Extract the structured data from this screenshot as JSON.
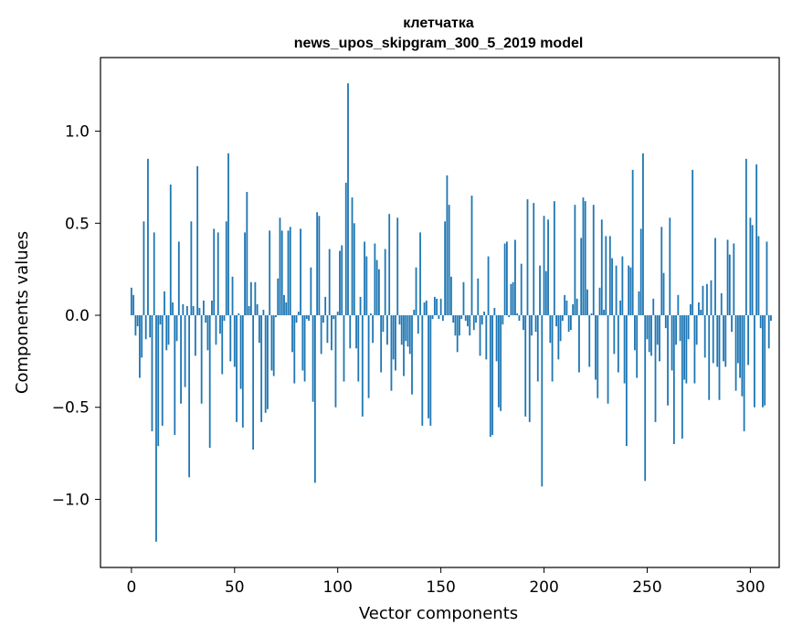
{
  "chart_data": {
    "type": "bar",
    "title": "клетчатка",
    "subtitle": "news_upos_skipgram_300_5_2019 model",
    "xlabel": "Vector components",
    "ylabel": "Components values",
    "xlim": [
      -15,
      314
    ],
    "ylim": [
      -1.37,
      1.4
    ],
    "x_ticks": [
      0,
      50,
      100,
      150,
      200,
      250,
      300
    ],
    "x_tick_labels": [
      "0",
      "50",
      "100",
      "150",
      "200",
      "250",
      "300"
    ],
    "y_ticks": [
      1.0,
      0.5,
      0.0,
      -0.5,
      -1.0
    ],
    "y_tick_labels": [
      "1.0",
      "0.5",
      "0.0",
      "−0.5",
      "−1.0"
    ],
    "grid": false,
    "legend": "none",
    "bar_color": "#1f77b4",
    "x_start": 0,
    "values": [
      0.15,
      0.11,
      -0.11,
      -0.06,
      -0.34,
      -0.23,
      0.51,
      -0.13,
      0.85,
      -0.12,
      -0.63,
      0.45,
      -1.23,
      -0.71,
      -0.05,
      -0.6,
      0.13,
      -0.19,
      -0.16,
      0.71,
      0.07,
      -0.65,
      -0.14,
      0.4,
      -0.48,
      0.06,
      -0.39,
      0.05,
      -0.88,
      0.51,
      0.05,
      -0.22,
      0.81,
      0.04,
      -0.48,
      0.08,
      -0.04,
      -0.19,
      -0.72,
      0.08,
      0.47,
      -0.16,
      0.45,
      -0.1,
      -0.32,
      -0.03,
      0.51,
      0.88,
      -0.25,
      0.21,
      -0.28,
      -0.58,
      0.01,
      -0.4,
      -0.61,
      0.45,
      0.67,
      0.05,
      0.18,
      -0.73,
      0.18,
      0.06,
      -0.15,
      -0.58,
      0.03,
      -0.53,
      -0.51,
      0.46,
      -0.3,
      -0.33,
      -0.01,
      0.2,
      0.53,
      0.46,
      0.11,
      0.07,
      0.46,
      0.48,
      -0.2,
      -0.37,
      -0.04,
      0.02,
      0.47,
      -0.3,
      -0.36,
      -0.02,
      -0.03,
      0.26,
      -0.47,
      -0.91,
      0.56,
      0.54,
      -0.21,
      -0.04,
      0.1,
      -0.15,
      0.36,
      -0.19,
      -0.02,
      -0.5,
      0.02,
      0.35,
      0.38,
      -0.36,
      0.72,
      1.26,
      -0.18,
      0.64,
      0.5,
      -0.18,
      -0.36,
      0.1,
      -0.55,
      0.4,
      0.32,
      -0.45,
      0.01,
      -0.15,
      0.39,
      0.3,
      0.25,
      -0.31,
      -0.09,
      0.36,
      -0.16,
      0.55,
      -0.41,
      -0.24,
      -0.3,
      0.53,
      -0.05,
      -0.16,
      -0.33,
      -0.14,
      -0.17,
      -0.21,
      -0.43,
      0.03,
      0.26,
      -0.1,
      0.45,
      -0.6,
      0.07,
      0.08,
      -0.56,
      -0.6,
      -0.02,
      0.1,
      0.09,
      -0.02,
      0.09,
      -0.03,
      0.51,
      0.76,
      0.6,
      0.21,
      -0.04,
      -0.11,
      -0.2,
      -0.11,
      -0.02,
      0.18,
      -0.03,
      -0.06,
      -0.11,
      0.65,
      -0.08,
      -0.04,
      0.2,
      -0.22,
      -0.05,
      0.02,
      -0.24,
      0.32,
      -0.66,
      -0.65,
      0.04,
      -0.25,
      -0.5,
      -0.52,
      -0.05,
      0.39,
      0.4,
      -0.01,
      0.17,
      0.18,
      0.41,
      0.01,
      -0.03,
      0.28,
      -0.08,
      -0.55,
      0.63,
      -0.58,
      -0.11,
      0.61,
      -0.09,
      -0.36,
      0.27,
      -0.93,
      0.54,
      0.24,
      0.52,
      -0.15,
      -0.36,
      0.62,
      -0.06,
      -0.24,
      -0.14,
      -0.03,
      0.11,
      0.08,
      -0.09,
      -0.08,
      0.06,
      0.6,
      0.09,
      -0.31,
      0.42,
      0.64,
      0.62,
      0.14,
      -0.28,
      0.01,
      0.6,
      -0.35,
      -0.45,
      0.15,
      0.52,
      0.03,
      0.43,
      -0.48,
      0.43,
      0.31,
      -0.21,
      0.27,
      -0.31,
      0.08,
      0.32,
      -0.37,
      -0.71,
      0.27,
      0.26,
      0.79,
      -0.19,
      -0.34,
      0.13,
      0.47,
      0.88,
      -0.9,
      -0.13,
      -0.2,
      -0.22,
      0.09,
      -0.58,
      -0.16,
      -0.25,
      0.48,
      0.23,
      -0.07,
      -0.49,
      0.53,
      -0.3,
      -0.7,
      -0.16,
      0.11,
      -0.14,
      -0.67,
      -0.35,
      -0.37,
      -0.13,
      0.06,
      0.79,
      -0.37,
      -0.16,
      0.07,
      0.03,
      0.16,
      -0.23,
      0.17,
      -0.46,
      0.19,
      -0.26,
      0.42,
      -0.28,
      -0.46,
      0.12,
      -0.25,
      -0.28,
      0.41,
      0.33,
      -0.09,
      0.39,
      -0.41,
      -0.26,
      -0.34,
      -0.44,
      -0.63,
      0.85,
      -0.27,
      0.53,
      0.49,
      -0.5,
      0.82,
      0.43,
      -0.07,
      -0.5,
      -0.49,
      0.4,
      -0.18,
      -0.03
    ]
  }
}
